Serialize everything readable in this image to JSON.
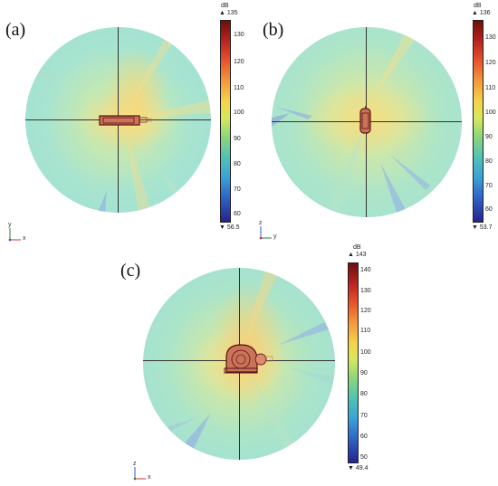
{
  "panels": [
    {
      "label": "(a)",
      "colorbar": {
        "unit": "dB",
        "max": "▲ 135",
        "min": "▼ 56.5",
        "ticks": [
          "130",
          "120",
          "110",
          "100",
          "90",
          "80",
          "70",
          "60"
        ]
      },
      "axes": {
        "vertical": "y",
        "horizontal": "x"
      }
    },
    {
      "label": "(b)",
      "colorbar": {
        "unit": "dB",
        "max": "▲ 136",
        "min": "▼ 53.7",
        "ticks": [
          "130",
          "120",
          "110",
          "100",
          "90",
          "80",
          "70",
          "60"
        ]
      },
      "axes": {
        "vertical": "z",
        "horizontal": "y"
      }
    },
    {
      "label": "(c)",
      "colorbar": {
        "unit": "dB",
        "max": "▲ 143",
        "min": "▼ 49.4",
        "ticks": [
          "140",
          "130",
          "120",
          "110",
          "100",
          "90",
          "80",
          "70",
          "60",
          "50"
        ]
      },
      "axes": {
        "vertical": "z",
        "horizontal": "x"
      }
    }
  ],
  "colors": {
    "field_base": "#a8e4cf",
    "hotspot": "#f6e58a",
    "hot_core": "#f2b27a",
    "node_blue": "#8fa6e8",
    "machine_outline": "#7a1f1f"
  }
}
